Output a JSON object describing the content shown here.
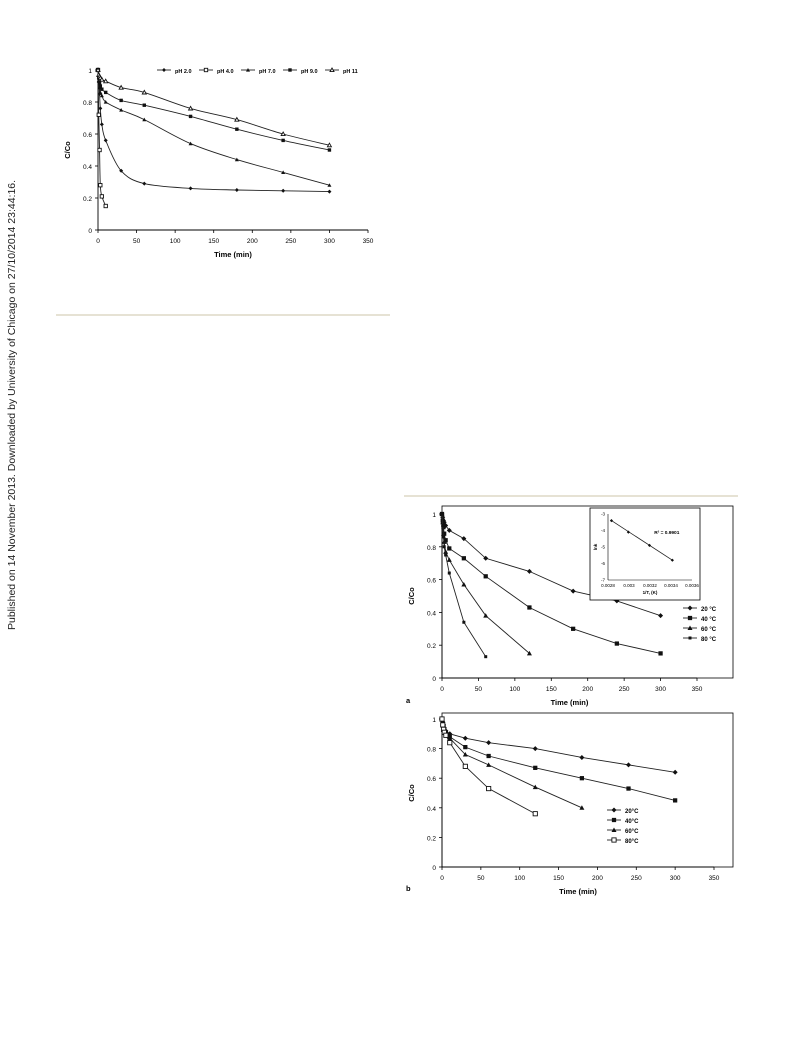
{
  "sidebar_note": "Published on 14 November 2013. Downloaded by University of Chicago on 27/10/2014 23:44:16.",
  "figure_top": {
    "panel_label": "",
    "chart_data": {
      "type": "line",
      "title": "",
      "xlabel": "Time (min)",
      "ylabel": "C/Co",
      "xlim": [
        0,
        350
      ],
      "ylim": [
        0,
        1
      ],
      "xticks": [
        "0",
        "50",
        "100",
        "150",
        "200",
        "250",
        "300",
        "350"
      ],
      "yticks": [
        "0",
        "0.2",
        "0.4",
        "0.6",
        "0.8",
        "1"
      ],
      "legend_position": "top",
      "series": [
        {
          "name": "pH 2.0",
          "marker": "diamond",
          "x": [
            0,
            1,
            2,
            3,
            5,
            10,
            30,
            60,
            120,
            180,
            240,
            300
          ],
          "y": [
            1.0,
            0.93,
            0.85,
            0.76,
            0.66,
            0.56,
            0.37,
            0.29,
            0.26,
            0.25,
            0.245,
            0.24
          ]
        },
        {
          "name": "pH 4.0",
          "marker": "square-open",
          "x": [
            0,
            1,
            2,
            3,
            5,
            10
          ],
          "y": [
            1.0,
            0.72,
            0.5,
            0.28,
            0.21,
            0.15
          ]
        },
        {
          "name": "pH 7.0",
          "marker": "triangle",
          "x": [
            0,
            1,
            2,
            3,
            5,
            10,
            30,
            60,
            120,
            180,
            240,
            300
          ],
          "y": [
            1.0,
            0.93,
            0.89,
            0.86,
            0.84,
            0.8,
            0.75,
            0.69,
            0.54,
            0.44,
            0.36,
            0.28
          ]
        },
        {
          "name": "pH 9.0",
          "marker": "square",
          "x": [
            0,
            1,
            2,
            3,
            5,
            10,
            30,
            60,
            120,
            180,
            240,
            300
          ],
          "y": [
            1.0,
            0.95,
            0.92,
            0.9,
            0.88,
            0.86,
            0.81,
            0.78,
            0.71,
            0.63,
            0.56,
            0.5
          ]
        },
        {
          "name": "pH 11",
          "marker": "triangle-open",
          "x": [
            0,
            1,
            2,
            3,
            5,
            10,
            30,
            60,
            120,
            180,
            240,
            300
          ],
          "y": [
            1.0,
            0.97,
            0.96,
            0.95,
            0.94,
            0.93,
            0.89,
            0.86,
            0.76,
            0.69,
            0.6,
            0.53
          ]
        }
      ]
    }
  },
  "figure_a": {
    "panel_label": "a",
    "chart_data": {
      "type": "line",
      "title": "",
      "xlabel": "Time (min)",
      "ylabel": "C/Co",
      "xlim": [
        0,
        350
      ],
      "ylim": [
        0,
        1
      ],
      "xticks": [
        "0",
        "50",
        "100",
        "150",
        "200",
        "250",
        "300",
        "350"
      ],
      "yticks": [
        "0",
        "0.2",
        "0.4",
        "0.6",
        "0.8",
        "1"
      ],
      "legend_position": "right",
      "series": [
        {
          "name": "20 °C",
          "marker": "diamond",
          "x": [
            0,
            1,
            2,
            3,
            5,
            10,
            30,
            60,
            120,
            180,
            240,
            300
          ],
          "y": [
            1.0,
            0.98,
            0.96,
            0.95,
            0.93,
            0.9,
            0.85,
            0.73,
            0.65,
            0.53,
            0.47,
            0.38
          ]
        },
        {
          "name": "40 °C",
          "marker": "square",
          "x": [
            0,
            1,
            2,
            3,
            5,
            10,
            30,
            60,
            120,
            180,
            240,
            300
          ],
          "y": [
            1.0,
            0.96,
            0.92,
            0.88,
            0.84,
            0.79,
            0.73,
            0.62,
            0.43,
            0.3,
            0.21,
            0.15
          ]
        },
        {
          "name": "60 °C",
          "marker": "triangle",
          "x": [
            0,
            1,
            2,
            3,
            5,
            10,
            30,
            60,
            120
          ],
          "y": [
            1.0,
            0.95,
            0.88,
            0.83,
            0.77,
            0.72,
            0.57,
            0.38,
            0.15
          ]
        },
        {
          "name": "80 °C",
          "marker": "square-small",
          "x": [
            0,
            1,
            2,
            3,
            5,
            10,
            30,
            60
          ],
          "y": [
            1.0,
            0.93,
            0.86,
            0.8,
            0.75,
            0.64,
            0.34,
            0.13
          ]
        }
      ]
    },
    "inset": {
      "chart_data": {
        "type": "line",
        "xlabel": "1/T, (K)",
        "ylabel": "lnk",
        "xlim": [
          0.0028,
          0.0036
        ],
        "ylim": [
          -7,
          -3
        ],
        "xticks": [
          "0.0028",
          "0.003",
          "0.0032",
          "0.0034",
          "0.0036"
        ],
        "yticks": [
          "-3",
          "-4",
          "-5",
          "-6",
          "-7"
        ],
        "annotation": "R² = 0.9901",
        "series": [
          {
            "name": "",
            "marker": "diamond",
            "x": [
              0.002833,
              0.002994,
              0.003195,
              0.003413
            ],
            "y": [
              -3.4,
              -4.1,
              -4.9,
              -5.8
            ]
          }
        ]
      }
    }
  },
  "figure_b": {
    "panel_label": "b",
    "chart_data": {
      "type": "line",
      "title": "",
      "xlabel": "Time (min)",
      "ylabel": "C/Co",
      "xlim": [
        0,
        350
      ],
      "ylim": [
        0,
        1
      ],
      "xticks": [
        "0",
        "50",
        "100",
        "150",
        "200",
        "250",
        "300",
        "350"
      ],
      "yticks": [
        "0",
        "0.2",
        "0.4",
        "0.6",
        "0.8",
        "1"
      ],
      "legend_position": "right",
      "series": [
        {
          "name": "20°C",
          "marker": "diamond",
          "x": [
            0,
            1,
            2,
            3,
            5,
            10,
            30,
            60,
            120,
            180,
            240,
            300
          ],
          "y": [
            1.0,
            0.98,
            0.96,
            0.94,
            0.92,
            0.9,
            0.87,
            0.84,
            0.8,
            0.74,
            0.69,
            0.64
          ]
        },
        {
          "name": "40°C",
          "marker": "square",
          "x": [
            0,
            1,
            2,
            3,
            5,
            10,
            30,
            60,
            120,
            180,
            240,
            300
          ],
          "y": [
            1.0,
            0.97,
            0.95,
            0.93,
            0.91,
            0.88,
            0.81,
            0.75,
            0.67,
            0.6,
            0.53,
            0.45
          ]
        },
        {
          "name": "60°C",
          "marker": "triangle",
          "x": [
            0,
            1,
            2,
            3,
            5,
            10,
            30,
            60,
            120,
            180
          ],
          "y": [
            1.0,
            0.97,
            0.94,
            0.92,
            0.9,
            0.87,
            0.76,
            0.69,
            0.54,
            0.4
          ]
        },
        {
          "name": "80°C",
          "marker": "square-open",
          "x": [
            0,
            1,
            2,
            3,
            5,
            10,
            30,
            60,
            120
          ],
          "y": [
            1.0,
            0.96,
            0.93,
            0.91,
            0.89,
            0.84,
            0.68,
            0.53,
            0.36
          ]
        }
      ]
    }
  }
}
